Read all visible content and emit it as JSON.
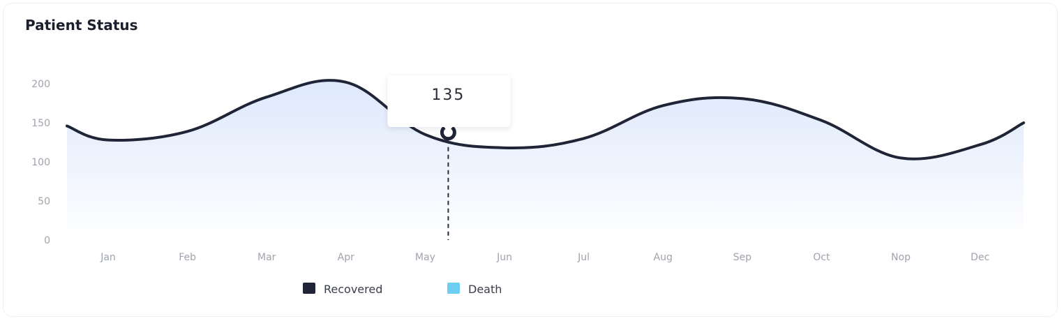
{
  "card": {
    "title": "Patient Status"
  },
  "colors": {
    "line": "#1f2436",
    "area_top": "#dde8fb",
    "area_bottom": "#ffffff",
    "recovered": "#1f2436",
    "death": "#6ccff2",
    "grid_text": "#9fa3ad"
  },
  "chart_data": {
    "type": "area",
    "categories": [
      "Jan",
      "Feb",
      "Mar",
      "Apr",
      "May",
      "Jun",
      "Jul",
      "Aug",
      "Sep",
      "Oct",
      "Nop",
      "Dec"
    ],
    "series": [
      {
        "name": "Recovered",
        "values": [
          128,
          139,
          183,
          202,
          135,
          118,
          130,
          172,
          181,
          153,
          105,
          122
        ]
      }
    ],
    "start_value": 146,
    "end_value": 150,
    "yticks": [
      0,
      50,
      100,
      150,
      200
    ],
    "ylim": [
      0,
      200
    ],
    "legend": [
      {
        "label": "Recovered",
        "color": "#1f2436"
      },
      {
        "label": "Death",
        "color": "#6ccff2"
      }
    ],
    "legend_position": "bottom-center",
    "tooltip": {
      "category": "May",
      "value": "135"
    },
    "grid": false
  }
}
